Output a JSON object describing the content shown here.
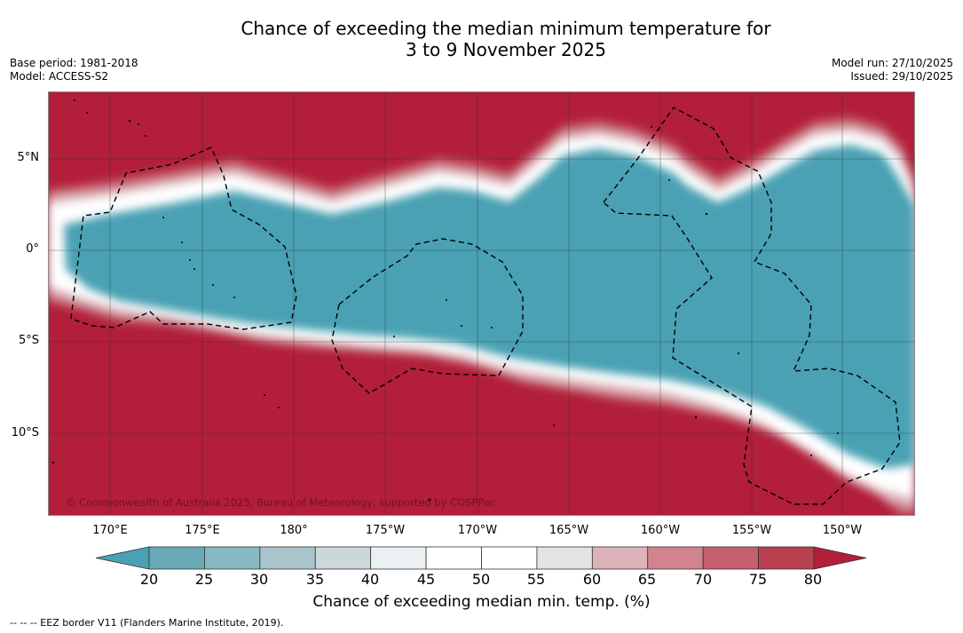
{
  "title": {
    "line1": "Chance of exceeding the median minimum temperature for",
    "line2": "3 to 9 November 2025"
  },
  "meta": {
    "base_period": "Base period: 1981-2018",
    "model": "Model: ACCESS-S2",
    "model_run": "Model run: 27/10/2025",
    "issued": "Issued: 29/10/2025"
  },
  "map": {
    "copyright": "© Commonwealth of Australia 2025, Bureau of Meteorology, supported by COSPPac",
    "lat_labels": [
      "5°N",
      "0°",
      "5°S",
      "10°S"
    ],
    "lon_labels": [
      "170°E",
      "175°E",
      "180°",
      "175°W",
      "170°W",
      "165°W",
      "160°W",
      "155°W",
      "150°W"
    ],
    "colors": {
      "high": "#b21e3b",
      "low": "#4aa1b3"
    }
  },
  "colorbar": {
    "title": "Chance of exceeding median min. temp. (%)",
    "ticks": [
      "20",
      "25",
      "30",
      "35",
      "40",
      "45",
      "50",
      "55",
      "60",
      "65",
      "70",
      "75",
      "80"
    ],
    "colors": [
      "#4aa1b3",
      "#6aa9b6",
      "#88b8c3",
      "#a9c5cb",
      "#ccd7da",
      "#ebf0f2",
      "#ffffff",
      "#ffffff",
      "#e4e2e3",
      "#ddb3b9",
      "#d1848e",
      "#c55f6d",
      "#b8404f",
      "#b21e3b"
    ]
  },
  "footnote": "--  --  -- EEZ border V11 (Flanders Marine Institute, 2019)."
}
